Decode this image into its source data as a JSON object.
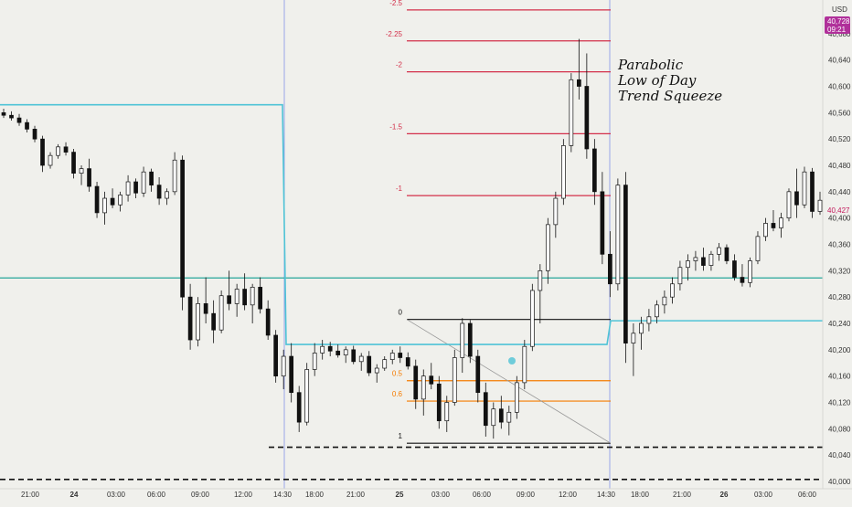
{
  "chart_data": {
    "type": "candlestick",
    "currency_label": "USD",
    "current_price": "40,728",
    "current_time": "09:21",
    "last_price_label": "40,427",
    "y_ticks": [
      "40,680",
      "40,640",
      "40,600",
      "40,560",
      "40,520",
      "40,480",
      "40,440",
      "40,400",
      "40,360",
      "40,320",
      "40,280",
      "40,240",
      "40,200",
      "40,160",
      "40,120",
      "40,080",
      "40,040",
      "40,000"
    ],
    "y_tick_values": [
      40680,
      40640,
      40600,
      40560,
      40520,
      40480,
      40440,
      40400,
      40360,
      40320,
      40280,
      40240,
      40200,
      40160,
      40120,
      40080,
      40040,
      40000
    ],
    "ylim": [
      40000,
      40720
    ],
    "x_ticks": [
      {
        "label": "21:00",
        "bold": false
      },
      {
        "label": "24",
        "bold": true
      },
      {
        "label": "03:00",
        "bold": false
      },
      {
        "label": "06:00",
        "bold": false
      },
      {
        "label": "09:00",
        "bold": false
      },
      {
        "label": "12:00",
        "bold": false
      },
      {
        "label": "14:30",
        "bold": false
      },
      {
        "label": "18:00",
        "bold": false
      },
      {
        "label": "21:00",
        "bold": false
      },
      {
        "label": "25",
        "bold": true
      },
      {
        "label": "03:00",
        "bold": false
      },
      {
        "label": "06:00",
        "bold": false
      },
      {
        "label": "09:00",
        "bold": false
      },
      {
        "label": "12:00",
        "bold": false
      },
      {
        "label": "14:30",
        "bold": false
      },
      {
        "label": "18:00",
        "bold": false
      },
      {
        "label": "21:00",
        "bold": false
      },
      {
        "label": "26",
        "bold": true
      },
      {
        "label": "03:00",
        "bold": false
      },
      {
        "label": "06:00",
        "bold": false
      }
    ],
    "fib_levels": [
      {
        "label": "-2.5",
        "value": 40716,
        "color": "#d32f4a"
      },
      {
        "label": "-2.25",
        "value": 40669,
        "color": "#d32f4a"
      },
      {
        "label": "-2",
        "value": 40622,
        "color": "#d32f4a"
      },
      {
        "label": "-1.5",
        "value": 40528,
        "color": "#d32f4a"
      },
      {
        "label": "-1",
        "value": 40434,
        "color": "#d32f4a"
      },
      {
        "label": "0",
        "value": 40246,
        "color": "#111111"
      },
      {
        "label": "0.5",
        "value": 40153,
        "color": "#f57c00"
      },
      {
        "label": "0.6",
        "value": 40122,
        "color": "#f57c00"
      },
      {
        "label": "1",
        "value": 40058,
        "color": "#111111"
      }
    ],
    "annotation": [
      "Parabolic",
      "Low of Day",
      "Trend Squeeze"
    ],
    "horizontal_lines": [
      {
        "value": 40309,
        "color": "#26a69a",
        "style": "solid"
      },
      {
        "value": 40052,
        "color": "#111111",
        "style": "dashed"
      },
      {
        "value": 40003,
        "color": "#111111",
        "style": "dashed"
      }
    ],
    "step_line": {
      "color": "#4fc3d6",
      "segments": [
        {
          "value": 40572
        },
        {
          "value": 40208
        },
        {
          "value": 40244
        }
      ]
    },
    "candles": [
      {
        "o": 40560,
        "h": 40566,
        "l": 40552,
        "c": 40556
      },
      {
        "o": 40556,
        "h": 40562,
        "l": 40548,
        "c": 40552
      },
      {
        "o": 40552,
        "h": 40558,
        "l": 40540,
        "c": 40545
      },
      {
        "o": 40545,
        "h": 40550,
        "l": 40530,
        "c": 40535
      },
      {
        "o": 40535,
        "h": 40540,
        "l": 40515,
        "c": 40520
      },
      {
        "o": 40520,
        "h": 40525,
        "l": 40470,
        "c": 40480
      },
      {
        "o": 40480,
        "h": 40500,
        "l": 40475,
        "c": 40495
      },
      {
        "o": 40495,
        "h": 40512,
        "l": 40490,
        "c": 40508
      },
      {
        "o": 40508,
        "h": 40515,
        "l": 40495,
        "c": 40500
      },
      {
        "o": 40500,
        "h": 40505,
        "l": 40460,
        "c": 40468
      },
      {
        "o": 40468,
        "h": 40480,
        "l": 40450,
        "c": 40475
      },
      {
        "o": 40475,
        "h": 40490,
        "l": 40440,
        "c": 40448
      },
      {
        "o": 40448,
        "h": 40455,
        "l": 40400,
        "c": 40408
      },
      {
        "o": 40408,
        "h": 40440,
        "l": 40390,
        "c": 40430
      },
      {
        "o": 40430,
        "h": 40445,
        "l": 40415,
        "c": 40420
      },
      {
        "o": 40420,
        "h": 40440,
        "l": 40410,
        "c": 40435
      },
      {
        "o": 40435,
        "h": 40465,
        "l": 40425,
        "c": 40455
      },
      {
        "o": 40455,
        "h": 40460,
        "l": 40430,
        "c": 40438
      },
      {
        "o": 40438,
        "h": 40478,
        "l": 40432,
        "c": 40470
      },
      {
        "o": 40470,
        "h": 40475,
        "l": 40440,
        "c": 40450
      },
      {
        "o": 40450,
        "h": 40462,
        "l": 40420,
        "c": 40430
      },
      {
        "o": 40430,
        "h": 40445,
        "l": 40420,
        "c": 40440
      },
      {
        "o": 40440,
        "h": 40500,
        "l": 40435,
        "c": 40488
      },
      {
        "o": 40488,
        "h": 40495,
        "l": 40260,
        "c": 40280
      },
      {
        "o": 40280,
        "h": 40300,
        "l": 40200,
        "c": 40215
      },
      {
        "o": 40215,
        "h": 40280,
        "l": 40205,
        "c": 40270
      },
      {
        "o": 40270,
        "h": 40310,
        "l": 40240,
        "c": 40255
      },
      {
        "o": 40255,
        "h": 40275,
        "l": 40210,
        "c": 40230
      },
      {
        "o": 40230,
        "h": 40290,
        "l": 40225,
        "c": 40282
      },
      {
        "o": 40282,
        "h": 40320,
        "l": 40260,
        "c": 40270
      },
      {
        "o": 40270,
        "h": 40300,
        "l": 40250,
        "c": 40292
      },
      {
        "o": 40292,
        "h": 40316,
        "l": 40260,
        "c": 40268
      },
      {
        "o": 40268,
        "h": 40300,
        "l": 40240,
        "c": 40295
      },
      {
        "o": 40295,
        "h": 40310,
        "l": 40255,
        "c": 40262
      },
      {
        "o": 40262,
        "h": 40275,
        "l": 40215,
        "c": 40222
      },
      {
        "o": 40222,
        "h": 40230,
        "l": 40150,
        "c": 40160
      },
      {
        "o": 40160,
        "h": 40200,
        "l": 40140,
        "c": 40190
      },
      {
        "o": 40190,
        "h": 40210,
        "l": 40120,
        "c": 40135
      },
      {
        "o": 40135,
        "h": 40145,
        "l": 40075,
        "c": 40090
      },
      {
        "o": 40090,
        "h": 40180,
        "l": 40085,
        "c": 40170
      },
      {
        "o": 40170,
        "h": 40210,
        "l": 40160,
        "c": 40195
      },
      {
        "o": 40195,
        "h": 40215,
        "l": 40185,
        "c": 40205
      },
      {
        "o": 40205,
        "h": 40212,
        "l": 40190,
        "c": 40198
      },
      {
        "o": 40198,
        "h": 40208,
        "l": 40188,
        "c": 40192
      },
      {
        "o": 40192,
        "h": 40205,
        "l": 40180,
        "c": 40200
      },
      {
        "o": 40200,
        "h": 40206,
        "l": 40178,
        "c": 40182
      },
      {
        "o": 40182,
        "h": 40195,
        "l": 40168,
        "c": 40190
      },
      {
        "o": 40190,
        "h": 40198,
        "l": 40160,
        "c": 40165
      },
      {
        "o": 40165,
        "h": 40178,
        "l": 40150,
        "c": 40172
      },
      {
        "o": 40172,
        "h": 40190,
        "l": 40168,
        "c": 40185
      },
      {
        "o": 40185,
        "h": 40200,
        "l": 40178,
        "c": 40195
      },
      {
        "o": 40195,
        "h": 40205,
        "l": 40180,
        "c": 40188
      },
      {
        "o": 40188,
        "h": 40196,
        "l": 40170,
        "c": 40175
      },
      {
        "o": 40175,
        "h": 40185,
        "l": 40110,
        "c": 40125
      },
      {
        "o": 40125,
        "h": 40170,
        "l": 40100,
        "c": 40160
      },
      {
        "o": 40160,
        "h": 40180,
        "l": 40140,
        "c": 40148
      },
      {
        "o": 40148,
        "h": 40160,
        "l": 40080,
        "c": 40092
      },
      {
        "o": 40092,
        "h": 40130,
        "l": 40075,
        "c": 40120
      },
      {
        "o": 40120,
        "h": 40200,
        "l": 40115,
        "c": 40188
      },
      {
        "o": 40188,
        "h": 40248,
        "l": 40165,
        "c": 40240
      },
      {
        "o": 40240,
        "h": 40245,
        "l": 40180,
        "c": 40190
      },
      {
        "o": 40190,
        "h": 40200,
        "l": 40120,
        "c": 40135
      },
      {
        "o": 40135,
        "h": 40150,
        "l": 40068,
        "c": 40085
      },
      {
        "o": 40085,
        "h": 40120,
        "l": 40065,
        "c": 40110
      },
      {
        "o": 40110,
        "h": 40130,
        "l": 40080,
        "c": 40090
      },
      {
        "o": 40090,
        "h": 40115,
        "l": 40070,
        "c": 40105
      },
      {
        "o": 40105,
        "h": 40160,
        "l": 40095,
        "c": 40150
      },
      {
        "o": 40150,
        "h": 40215,
        "l": 40140,
        "c": 40205
      },
      {
        "o": 40205,
        "h": 40300,
        "l": 40198,
        "c": 40290
      },
      {
        "o": 40290,
        "h": 40330,
        "l": 40240,
        "c": 40320
      },
      {
        "o": 40320,
        "h": 40400,
        "l": 40300,
        "c": 40390
      },
      {
        "o": 40390,
        "h": 40440,
        "l": 40370,
        "c": 40430
      },
      {
        "o": 40430,
        "h": 40520,
        "l": 40420,
        "c": 40510
      },
      {
        "o": 40510,
        "h": 40620,
        "l": 40500,
        "c": 40610
      },
      {
        "o": 40610,
        "h": 40672,
        "l": 40580,
        "c": 40600
      },
      {
        "o": 40600,
        "h": 40650,
        "l": 40490,
        "c": 40505
      },
      {
        "o": 40505,
        "h": 40520,
        "l": 40420,
        "c": 40440
      },
      {
        "o": 40440,
        "h": 40470,
        "l": 40330,
        "c": 40345
      },
      {
        "o": 40345,
        "h": 40380,
        "l": 40280,
        "c": 40300
      },
      {
        "o": 40300,
        "h": 40460,
        "l": 40290,
        "c": 40450
      },
      {
        "o": 40450,
        "h": 40470,
        "l": 40180,
        "c": 40210
      },
      {
        "o": 40210,
        "h": 40240,
        "l": 40160,
        "c": 40225
      },
      {
        "o": 40225,
        "h": 40250,
        "l": 40200,
        "c": 40240
      },
      {
        "o": 40240,
        "h": 40262,
        "l": 40228,
        "c": 40250
      },
      {
        "o": 40250,
        "h": 40275,
        "l": 40240,
        "c": 40268
      },
      {
        "o": 40268,
        "h": 40290,
        "l": 40255,
        "c": 40280
      },
      {
        "o": 40280,
        "h": 40310,
        "l": 40270,
        "c": 40300
      },
      {
        "o": 40300,
        "h": 40335,
        "l": 40290,
        "c": 40325
      },
      {
        "o": 40325,
        "h": 40345,
        "l": 40305,
        "c": 40335
      },
      {
        "o": 40335,
        "h": 40350,
        "l": 40320,
        "c": 40340
      },
      {
        "o": 40340,
        "h": 40355,
        "l": 40320,
        "c": 40328
      },
      {
        "o": 40328,
        "h": 40350,
        "l": 40320,
        "c": 40345
      },
      {
        "o": 40345,
        "h": 40362,
        "l": 40335,
        "c": 40355
      },
      {
        "o": 40355,
        "h": 40360,
        "l": 40330,
        "c": 40335
      },
      {
        "o": 40335,
        "h": 40345,
        "l": 40305,
        "c": 40310
      },
      {
        "o": 40310,
        "h": 40330,
        "l": 40296,
        "c": 40302
      },
      {
        "o": 40302,
        "h": 40340,
        "l": 40295,
        "c": 40335
      },
      {
        "o": 40335,
        "h": 40380,
        "l": 40330,
        "c": 40372
      },
      {
        "o": 40372,
        "h": 40400,
        "l": 40365,
        "c": 40392
      },
      {
        "o": 40392,
        "h": 40412,
        "l": 40380,
        "c": 40385
      },
      {
        "o": 40385,
        "h": 40408,
        "l": 40370,
        "c": 40400
      },
      {
        "o": 40400,
        "h": 40445,
        "l": 40395,
        "c": 40440
      },
      {
        "o": 40440,
        "h": 40475,
        "l": 40400,
        "c": 40420
      },
      {
        "o": 40420,
        "h": 40478,
        "l": 40415,
        "c": 40470
      },
      {
        "o": 40470,
        "h": 40476,
        "l": 40400,
        "c": 40410
      },
      {
        "o": 40410,
        "h": 40440,
        "l": 40405,
        "c": 40427
      }
    ]
  }
}
